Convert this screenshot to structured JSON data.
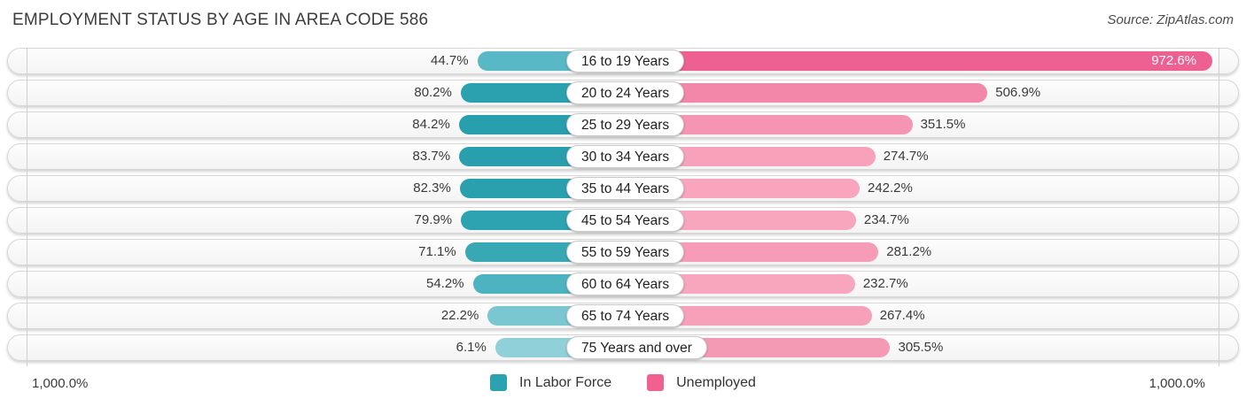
{
  "title": "EMPLOYMENT STATUS BY AGE IN AREA CODE 586",
  "source": "Source: ZipAtlas.com",
  "axis": {
    "left_max_label": "1,000.0%",
    "right_max_label": "1,000.0%"
  },
  "legend": [
    {
      "label": "In Labor Force",
      "color": "#2aa2b0"
    },
    {
      "label": "Unemployed",
      "color": "#f0618f"
    }
  ],
  "chart_data": {
    "type": "bar",
    "orientation": "bidirectional-horizontal",
    "title": "Employment Status by Age in Area Code 586",
    "axis_range_percent": [
      0,
      1000
    ],
    "categories": [
      "16 to 19 Years",
      "20 to 24 Years",
      "25 to 29 Years",
      "30 to 34 Years",
      "35 to 44 Years",
      "45 to 54 Years",
      "55 to 59 Years",
      "60 to 64 Years",
      "65 to 74 Years",
      "75 Years and over"
    ],
    "series": [
      {
        "name": "In Labor Force",
        "side": "left",
        "values": [
          44.7,
          80.2,
          84.2,
          83.7,
          82.3,
          79.9,
          71.1,
          54.2,
          22.2,
          6.1
        ],
        "colors": [
          "#58b8c5",
          "#2ba1af",
          "#289fad",
          "#299fae",
          "#2aa0af",
          "#2da2b0",
          "#38a8b5",
          "#4db3c0",
          "#7bc7d1",
          "#90d1d9"
        ]
      },
      {
        "name": "Unemployed",
        "side": "right",
        "values": [
          972.6,
          506.9,
          351.5,
          274.7,
          242.2,
          234.7,
          281.2,
          232.7,
          267.4,
          305.5
        ],
        "colors": [
          "#ef6092",
          "#f287aa",
          "#f595b3",
          "#f7a1bb",
          "#f8a5bd",
          "#f8a6be",
          "#f69cb7",
          "#f8a6be",
          "#f7a0b9",
          "#f59ab5"
        ]
      }
    ]
  }
}
